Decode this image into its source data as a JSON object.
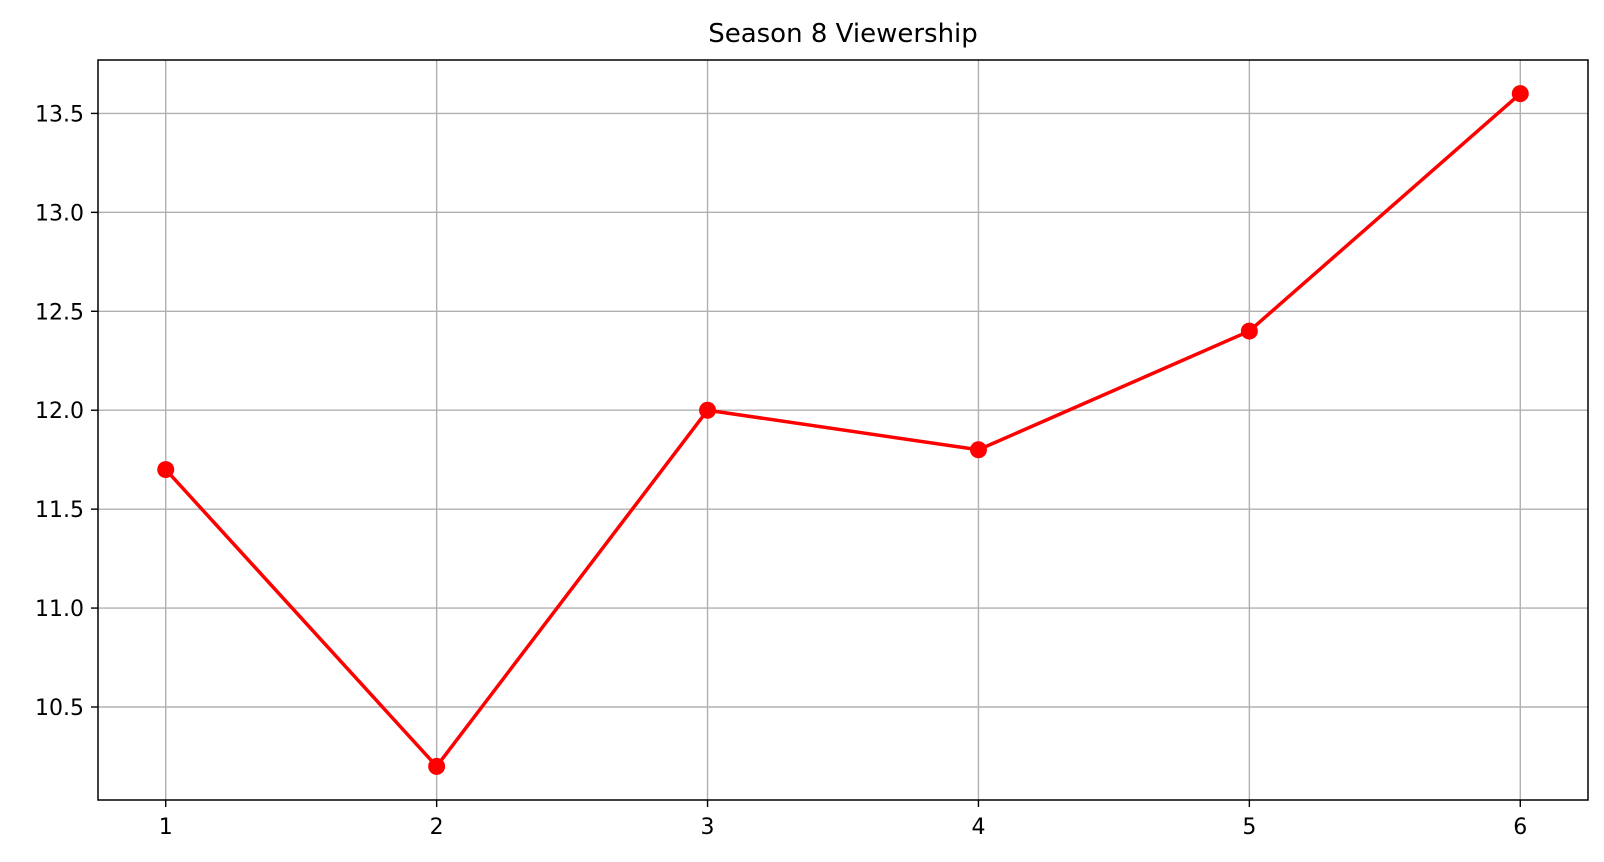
{
  "chart_data": {
    "type": "line",
    "title": "Season 8 Viewership",
    "xlabel": "",
    "ylabel": "",
    "x": [
      1,
      2,
      3,
      4,
      5,
      6
    ],
    "series": [
      {
        "values": [
          11.7,
          10.2,
          12.0,
          11.8,
          12.4,
          13.6
        ],
        "color": "#ff0000",
        "marker": "circle"
      }
    ],
    "xlim": [
      0.75,
      6.25
    ],
    "ylim": [
      10.03,
      13.77
    ],
    "x_ticks": [
      1,
      2,
      3,
      4,
      5,
      6
    ],
    "x_tick_labels": [
      "1",
      "2",
      "3",
      "4",
      "5",
      "6"
    ],
    "y_ticks": [
      10.5,
      11.0,
      11.5,
      12.0,
      12.5,
      13.0,
      13.5
    ],
    "y_tick_labels": [
      "10.5",
      "11.0",
      "11.5",
      "12.0",
      "12.5",
      "13.0",
      "13.5"
    ],
    "grid": true,
    "grid_color": "#b0b0b0",
    "axis_color": "#000000"
  }
}
